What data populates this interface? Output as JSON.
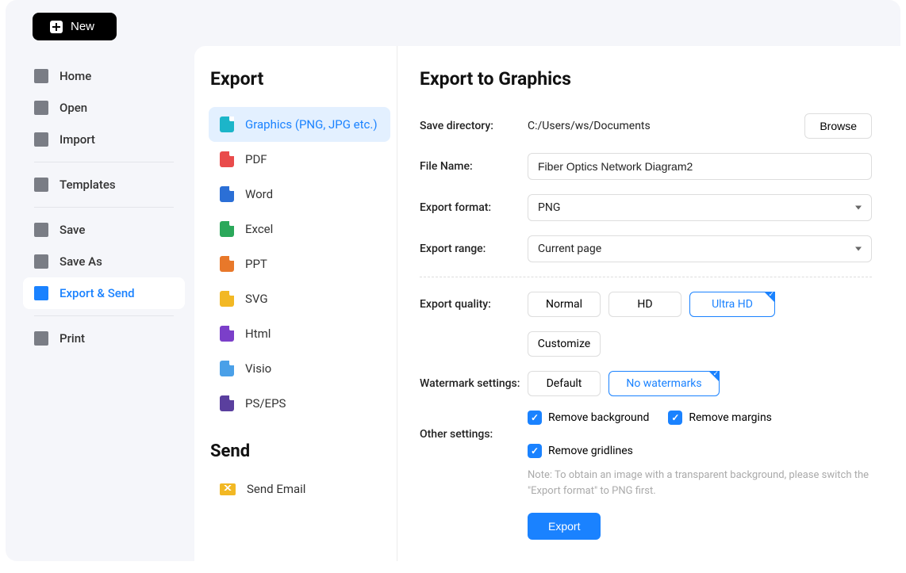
{
  "topbar": {
    "new_label": "New"
  },
  "sidebar": {
    "items": [
      {
        "label": "Home",
        "icon": "home-icon"
      },
      {
        "label": "Open",
        "icon": "open-icon"
      },
      {
        "label": "Import",
        "icon": "import-icon"
      },
      {
        "label": "Templates",
        "icon": "templates-icon"
      },
      {
        "label": "Save",
        "icon": "save-icon"
      },
      {
        "label": "Save As",
        "icon": "save-as-icon"
      },
      {
        "label": "Export & Send",
        "icon": "export-send-icon",
        "active": true
      },
      {
        "label": "Print",
        "icon": "print-icon"
      }
    ]
  },
  "export_panel": {
    "heading": "Export",
    "formats": [
      {
        "label": "Graphics (PNG, JPG etc.)",
        "color": "fi-teal",
        "active": true
      },
      {
        "label": "PDF",
        "color": "fi-red"
      },
      {
        "label": "Word",
        "color": "fi-blue"
      },
      {
        "label": "Excel",
        "color": "fi-green"
      },
      {
        "label": "PPT",
        "color": "fi-orange"
      },
      {
        "label": "SVG",
        "color": "fi-yellow"
      },
      {
        "label": "Html",
        "color": "fi-purple"
      },
      {
        "label": "Visio",
        "color": "fi-lblue"
      },
      {
        "label": "PS/EPS",
        "color": "fi-dpurple"
      }
    ],
    "send_heading": "Send",
    "send_items": [
      {
        "label": "Send Email"
      }
    ]
  },
  "settings": {
    "heading": "Export to Graphics",
    "save_dir_label": "Save directory:",
    "save_dir_value": "C:/Users/ws/Documents",
    "browse_label": "Browse",
    "filename_label": "File Name:",
    "filename_value": "Fiber Optics Network Diagram2",
    "format_label": "Export format:",
    "format_value": "PNG",
    "range_label": "Export range:",
    "range_value": "Current page",
    "quality_label": "Export quality:",
    "quality_options": [
      "Normal",
      "HD",
      "Ultra HD"
    ],
    "quality_selected": "Ultra HD",
    "customize_label": "Customize",
    "watermark_label": "Watermark settings:",
    "watermark_options": [
      "Default",
      "No watermarks"
    ],
    "watermark_selected": "No watermarks",
    "other_label": "Other settings:",
    "checkboxes": [
      {
        "label": "Remove background",
        "checked": true
      },
      {
        "label": "Remove margins",
        "checked": true
      },
      {
        "label": "Remove gridlines",
        "checked": true
      }
    ],
    "note": "Note: To obtain an image with a transparent background, please switch the \"Export format\" to PNG first.",
    "export_label": "Export"
  },
  "colors": {
    "accent": "#1a82ff",
    "bg": "#f5f6fa",
    "active_bg": "#e3f0ff"
  }
}
